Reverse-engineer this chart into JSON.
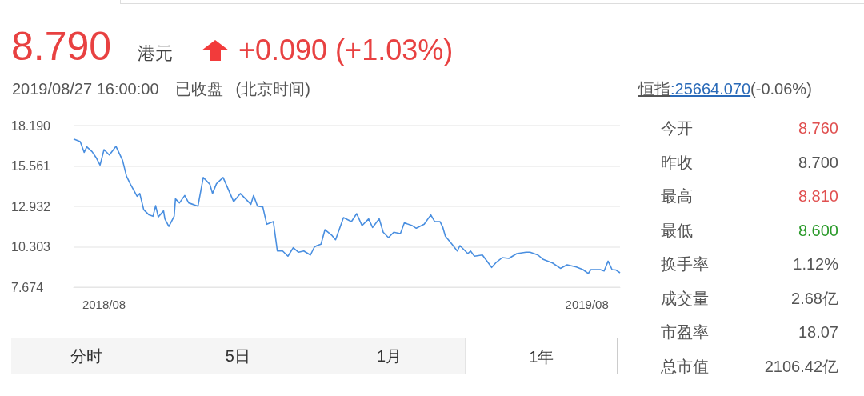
{
  "chart_data": {
    "type": "line",
    "x": [
      "2018-07-23",
      "2018-07-28",
      "2018-07-31",
      "2018-08-02",
      "2018-08-06",
      "2018-08-09",
      "2018-08-12",
      "2018-08-15",
      "2018-08-19",
      "2018-08-24",
      "2018-08-29",
      "2018-09-01",
      "2018-09-04",
      "2018-09-09",
      "2018-09-11",
      "2018-09-14",
      "2018-09-18",
      "2018-09-21",
      "2018-09-23",
      "2018-09-25",
      "2018-09-29",
      "2018-09-30",
      "2018-10-03",
      "2018-10-07",
      "2018-10-08",
      "2018-10-11",
      "2018-10-15",
      "2018-10-18",
      "2018-10-25",
      "2018-10-29",
      "2018-11-03",
      "2018-11-05",
      "2018-11-08",
      "2018-11-13",
      "2018-11-21",
      "2018-11-26",
      "2018-12-04",
      "2018-12-06",
      "2018-12-09",
      "2018-12-13",
      "2018-12-16",
      "2018-12-21",
      "2018-12-24",
      "2018-12-28",
      "2019-01-01",
      "2019-01-05",
      "2019-01-09",
      "2019-01-13",
      "2019-01-18",
      "2019-01-21",
      "2019-01-23",
      "2019-01-26",
      "2019-01-29",
      "2019-02-03",
      "2019-02-06",
      "2019-02-12",
      "2019-02-18",
      "2019-02-22",
      "2019-02-26",
      "2019-03-03",
      "2019-03-06",
      "2019-03-11",
      "2019-03-14",
      "2019-03-18",
      "2019-03-22",
      "2019-03-27",
      "2019-03-30",
      "2019-04-05",
      "2019-04-08",
      "2019-04-14",
      "2019-04-19",
      "2019-04-22",
      "2019-04-26",
      "2019-04-28",
      "2019-04-30",
      "2019-05-05",
      "2019-05-09",
      "2019-05-11",
      "2019-05-17",
      "2019-05-19",
      "2019-05-22",
      "2019-05-28",
      "2019-06-04",
      "2019-06-07",
      "2019-06-12",
      "2019-06-17",
      "2019-06-23",
      "2019-06-30",
      "2019-07-03",
      "2019-07-09",
      "2019-07-13",
      "2019-07-20",
      "2019-07-26",
      "2019-07-31",
      "2019-08-07",
      "2019-08-12",
      "2019-08-16",
      "2019-08-18",
      "2019-08-25",
      "2019-08-28",
      "2019-08-31",
      "2019-09-03",
      "2019-09-06",
      "2019-09-09"
    ],
    "series": [
      {
        "color": "#4a8fe0",
        "values": [
          17.32,
          17.15,
          16.45,
          16.8,
          16.49,
          16.11,
          15.62,
          16.63,
          16.28,
          16.84,
          15.93,
          14.89,
          14.37,
          13.59,
          13.77,
          12.72,
          12.38,
          12.29,
          12.98,
          12.25,
          12.64,
          12.12,
          11.63,
          12.29,
          13.42,
          13.16,
          13.64,
          13.16,
          12.95,
          14.81,
          14.37,
          13.77,
          14.41,
          14.81,
          13.24,
          13.77,
          13.07,
          13.64,
          12.95,
          12.9,
          11.77,
          11.94,
          10.03,
          10.03,
          9.69,
          10.24,
          9.95,
          10.03,
          9.77,
          10.29,
          10.38,
          10.47,
          11.42,
          11.07,
          10.76,
          12.2,
          11.94,
          12.46,
          11.68,
          12.12,
          11.56,
          12.12,
          11.25,
          10.9,
          11.25,
          11.16,
          11.86,
          11.68,
          11.51,
          11.77,
          12.38,
          11.94,
          11.94,
          11.59,
          10.99,
          10.47,
          10.03,
          10.38,
          9.86,
          10.03,
          9.69,
          9.77,
          8.96,
          9.25,
          9.6,
          9.55,
          9.86,
          9.95,
          9.95,
          9.77,
          9.48,
          9.25,
          8.9,
          9.13,
          8.99,
          8.82,
          8.56,
          8.82,
          8.82,
          8.73,
          9.37,
          8.82,
          8.79,
          8.61
        ]
      }
    ],
    "xlim": [
      "2018-07-23",
      "2019-09-09"
    ],
    "xticks": [
      {
        "value": "2018-08-15",
        "label": "2018/08"
      },
      {
        "value": "2019-08-15",
        "label": "2019/08"
      }
    ],
    "ylim": [
      7.674,
      18.19
    ],
    "yticks": [
      7.674,
      10.303,
      12.932,
      15.561,
      {
        "value": 18.19,
        "label": "18.190"
      }
    ],
    "grid": "y",
    "annotations": [
      "8.790",
      "港元",
      "+0.090 (+1.03%)",
      "2019/08/27 16:00:00",
      "已收盘",
      "(北京时间)",
      "恒指",
      ":25664.070",
      "(-0.06%)",
      "今开",
      "8.760",
      "昨收",
      "8.700",
      "最高",
      "8.810",
      "最低",
      "8.600",
      "换手率",
      "1.12%",
      "成交量",
      "2.68亿",
      "市盈率",
      "18.07",
      "总市值",
      "2106.42亿",
      "分时",
      "5日",
      "1月",
      "1年"
    ]
  }
}
